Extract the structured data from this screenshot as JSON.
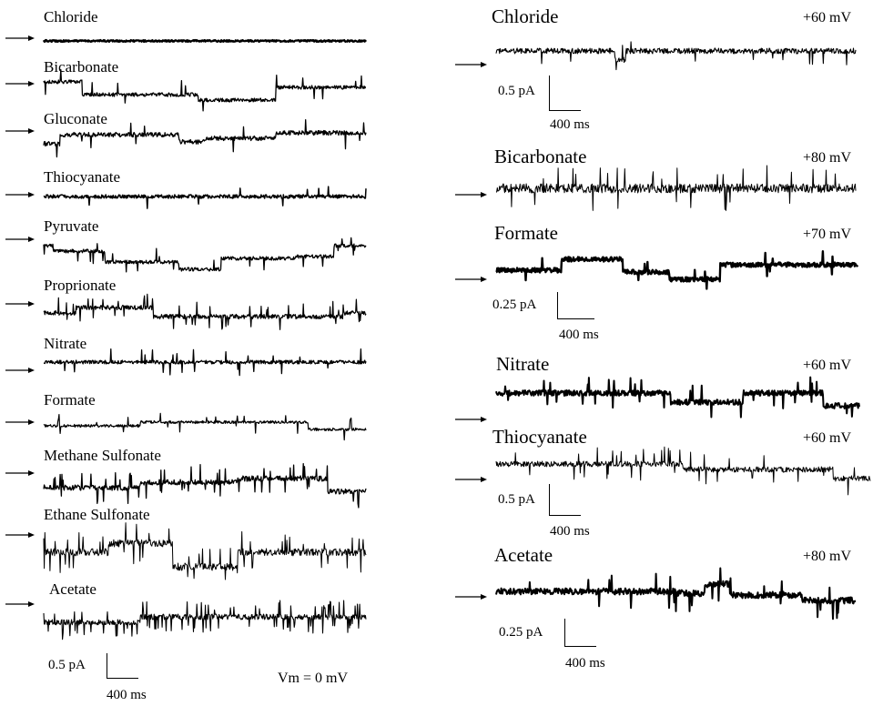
{
  "left_panel": {
    "traces": [
      {
        "label": "Chloride"
      },
      {
        "label": "Bicarbonate"
      },
      {
        "label": "Gluconate"
      },
      {
        "label": "Thiocyanate"
      },
      {
        "label": "Pyruvate"
      },
      {
        "label": "Proprionate"
      },
      {
        "label": "Nitrate"
      },
      {
        "label": "Formate"
      },
      {
        "label": "Methane Sulfonate"
      },
      {
        "label": "Ethane Sulfonate"
      },
      {
        "label": "Acetate"
      }
    ],
    "scale": {
      "current": "0.5 pA",
      "time": "400 ms"
    },
    "holding": "Vm = 0 mV"
  },
  "right_panel": {
    "traces": [
      {
        "label": "Chloride",
        "voltage": "+60 mV"
      },
      {
        "label": "Bicarbonate",
        "voltage": "+80 mV"
      },
      {
        "label": "Formate",
        "voltage": "+70 mV"
      },
      {
        "label": "Nitrate",
        "voltage": "+60 mV"
      },
      {
        "label": "Thiocyanate",
        "voltage": "+60 mV"
      },
      {
        "label": "Acetate",
        "voltage": "+80 mV"
      }
    ],
    "scales": [
      {
        "current": "0.5 pA",
        "time": "400 ms"
      },
      {
        "current": "0.25 pA",
        "time": "400 ms"
      },
      {
        "current": "0.5 pA",
        "time": "400 ms"
      },
      {
        "current": "0.25 pA",
        "time": "400 ms"
      }
    ]
  },
  "colors": {
    "ink": "#000000",
    "background": "#ffffff"
  }
}
